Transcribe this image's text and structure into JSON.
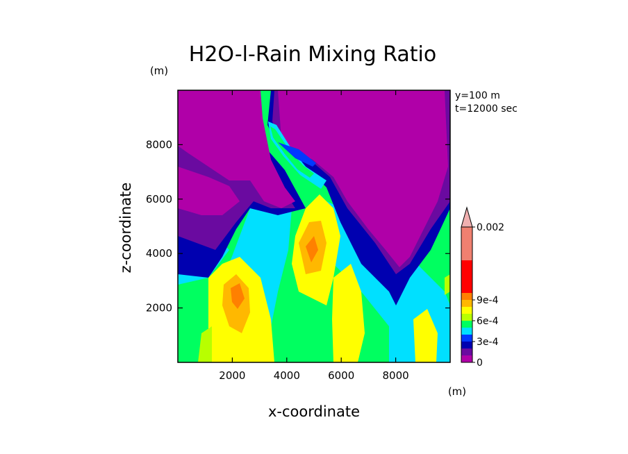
{
  "chart_data": {
    "type": "heatmap",
    "title": "H2O-l-Rain Mixing Ratio",
    "xlabel": "x-coordinate",
    "ylabel": "z-coordinate",
    "x_unit": "(m)",
    "y_unit": "(m)",
    "xlim": [
      0,
      10000
    ],
    "ylim": [
      0,
      10000
    ],
    "xticks": [
      {
        "value": 2000,
        "label": "2000"
      },
      {
        "value": 4000,
        "label": "4000"
      },
      {
        "value": 6000,
        "label": "6000"
      },
      {
        "value": 8000,
        "label": "8000"
      }
    ],
    "yticks": [
      {
        "value": 2000,
        "label": "2000"
      },
      {
        "value": 4000,
        "label": "4000"
      },
      {
        "value": 6000,
        "label": "6000"
      },
      {
        "value": 8000,
        "label": "8000"
      }
    ],
    "annotations": [
      "y=100 m",
      "t=12000 sec"
    ],
    "colorbar": {
      "levels": [
        0,
        0.0001,
        0.0002,
        0.0003,
        0.0004,
        0.0005,
        0.0006,
        0.0007,
        0.0008,
        0.0009,
        0.001,
        0.0015,
        0.002
      ],
      "colors": [
        "#b000a8",
        "#6a0aa0",
        "#0000b0",
        "#0038ff",
        "#00e0ff",
        "#00ff60",
        "#b8ff00",
        "#ffff00",
        "#ffb800",
        "#ff8000",
        "#ff0000",
        "#f08070",
        "#f0b0b0"
      ],
      "extend_max": true,
      "tick_labels": [
        {
          "value": 0,
          "label": "0"
        },
        {
          "value": 0.0003,
          "label": "3e-4"
        },
        {
          "value": 0.0006,
          "label": "6e-4"
        },
        {
          "value": 0.0009,
          "label": "9e-4"
        },
        {
          "value": 0.002,
          "label": "0.002"
        }
      ]
    },
    "field_description": "Two-dimensional x-z cross section of rain mixing ratio (kg/kg): high values (up to ~1e-3) in convective columns near x≈2000-3000 m and x≈4500-5500 m below z≈6000 m; near-zero values (magenta) aloft in broad regions separated by narrow bands of rain descending from x≈3500 m, z≈9000 m."
  }
}
